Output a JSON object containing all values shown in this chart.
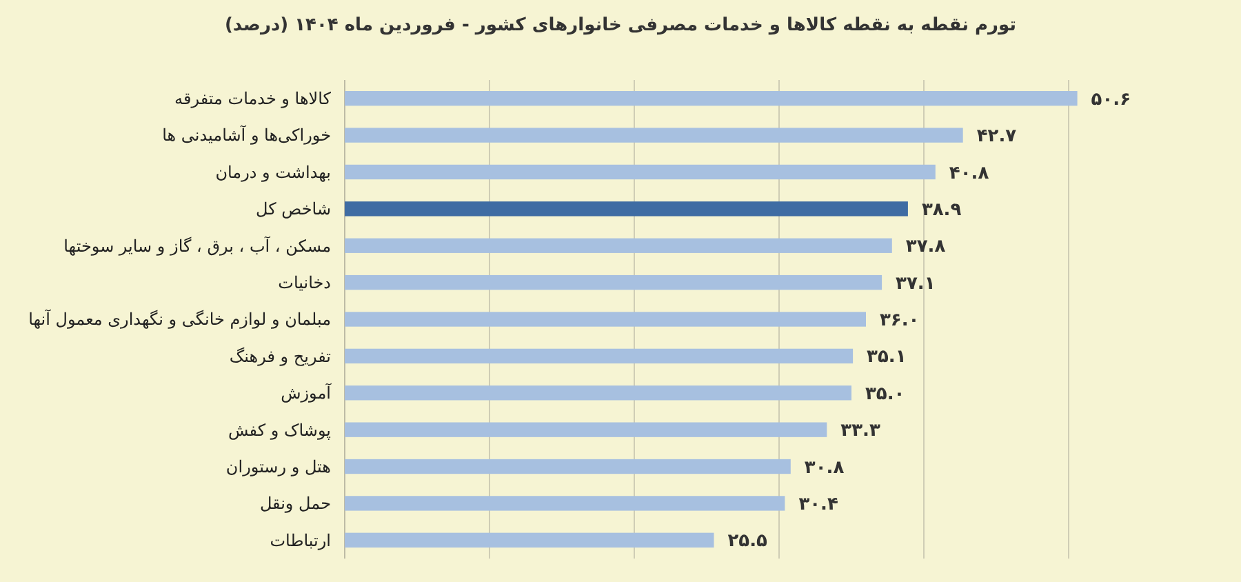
{
  "chart_data": {
    "type": "bar",
    "orientation": "horizontal",
    "title": "تورم نقطه به نقطه کالاها و خدمات مصرفی خانوارهای کشور - فروردین ماه ۱۴۰۴ (درصد)",
    "categories": [
      "کالاها و خدمات متفرقه",
      "خوراکی‌ها و آشامیدنی ها",
      "بهداشت و درمان",
      "شاخص کل",
      "مسکن ، آب ، برق ، گاز و سایر سوختها",
      "دخانیات",
      "مبلمان و لوازم خانگی و نگهداری معمول آنها",
      "تفریح و فرهنگ",
      "آموزش",
      "پوشاک و کفش",
      "هتل و رستوران",
      "حمل ونقل",
      "ارتباطات"
    ],
    "values": [
      50.6,
      42.7,
      40.8,
      38.9,
      37.8,
      37.1,
      36.0,
      35.1,
      35.0,
      33.3,
      30.8,
      30.4,
      25.5
    ],
    "value_labels": [
      "۵۰.۶",
      "۴۲.۷",
      "۴۰.۸",
      "۳۸.۹",
      "۳۷.۸",
      "۳۷.۱",
      "۳۶.۰",
      "۳۵.۱",
      "۳۵.۰",
      "۳۳.۳",
      "۳۰.۸",
      "۳۰.۴",
      "۲۵.۵"
    ],
    "colors": [
      "#a7c0e0",
      "#a7c0e0",
      "#a7c0e0",
      "#3f6ca3",
      "#a7c0e0",
      "#a7c0e0",
      "#a7c0e0",
      "#a7c0e0",
      "#a7c0e0",
      "#a7c0e0",
      "#a7c0e0",
      "#a7c0e0",
      "#a7c0e0"
    ],
    "xticks": [
      {
        "value": 10,
        "label": null
      },
      {
        "value": 20,
        "label": null
      },
      {
        "value": 30,
        "label": null
      },
      {
        "value": 40,
        "label": null
      },
      {
        "value": 50,
        "label": null
      }
    ],
    "grid": "x",
    "tick_labels": "y"
  }
}
